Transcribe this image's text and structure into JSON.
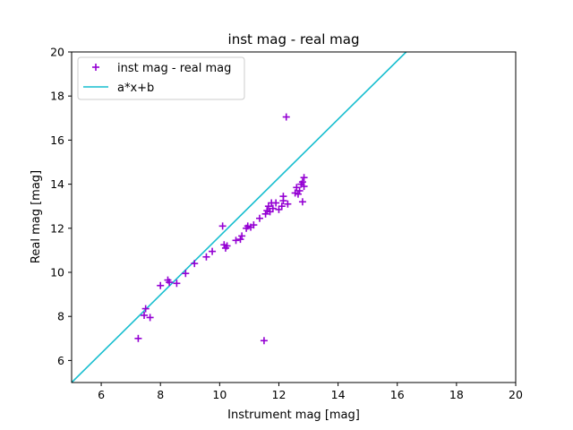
{
  "chart_data": {
    "type": "scatter",
    "title": "inst mag - real mag",
    "xlabel": "Instrument mag [mag]",
    "ylabel": "Real mag [mag]",
    "xlim": [
      5,
      20
    ],
    "ylim": [
      5,
      20
    ],
    "xticks": [
      6,
      8,
      10,
      12,
      14,
      16,
      18,
      20
    ],
    "yticks": [
      6,
      8,
      10,
      12,
      14,
      16,
      18,
      20
    ],
    "grid": false,
    "legend_position": "upper-left",
    "series": [
      {
        "name": "inst mag - real mag",
        "kind": "scatter",
        "marker": "plus",
        "color": "#9400d3",
        "points": [
          [
            7.25,
            7.0
          ],
          [
            7.45,
            8.05
          ],
          [
            7.5,
            8.35
          ],
          [
            7.65,
            7.95
          ],
          [
            8.0,
            9.4
          ],
          [
            8.25,
            9.65
          ],
          [
            8.3,
            9.55
          ],
          [
            8.55,
            9.5
          ],
          [
            8.85,
            9.95
          ],
          [
            9.15,
            10.4
          ],
          [
            9.55,
            10.7
          ],
          [
            9.75,
            10.95
          ],
          [
            10.1,
            12.1
          ],
          [
            10.15,
            11.25
          ],
          [
            10.2,
            11.1
          ],
          [
            10.25,
            11.2
          ],
          [
            10.55,
            11.45
          ],
          [
            10.7,
            11.5
          ],
          [
            10.75,
            11.65
          ],
          [
            10.9,
            12.0
          ],
          [
            10.95,
            12.1
          ],
          [
            11.05,
            12.05
          ],
          [
            11.15,
            12.15
          ],
          [
            11.35,
            12.45
          ],
          [
            11.5,
            6.9
          ],
          [
            11.55,
            12.65
          ],
          [
            11.6,
            12.8
          ],
          [
            11.65,
            13.0
          ],
          [
            11.7,
            12.75
          ],
          [
            11.75,
            13.15
          ],
          [
            11.8,
            12.9
          ],
          [
            11.9,
            13.15
          ],
          [
            12.0,
            12.85
          ],
          [
            12.1,
            13.0
          ],
          [
            12.15,
            13.25
          ],
          [
            12.15,
            13.45
          ],
          [
            12.25,
            17.05
          ],
          [
            12.3,
            13.1
          ],
          [
            12.55,
            13.6
          ],
          [
            12.6,
            13.85
          ],
          [
            12.65,
            13.55
          ],
          [
            12.7,
            13.7
          ],
          [
            12.75,
            14.0
          ],
          [
            12.8,
            13.2
          ],
          [
            12.8,
            14.1
          ],
          [
            12.85,
            13.9
          ],
          [
            12.85,
            14.3
          ]
        ]
      },
      {
        "name": "a*x+b",
        "kind": "line",
        "color": "#17becf",
        "points": [
          [
            5.0,
            5.0
          ],
          [
            16.3,
            20.0
          ]
        ]
      }
    ]
  }
}
